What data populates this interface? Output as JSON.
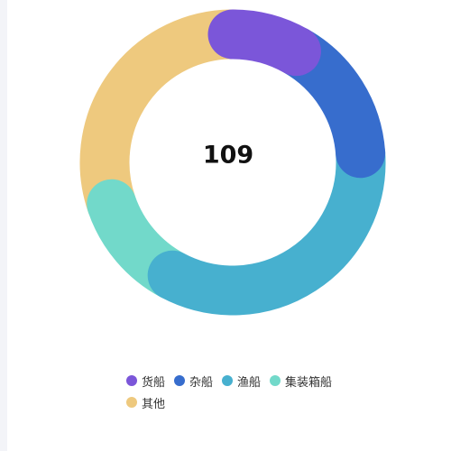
{
  "chart_data": {
    "type": "pie",
    "variant": "donut-rounded",
    "center_value": "109",
    "total": 109,
    "categories": [
      "货船",
      "杂船",
      "渔船",
      "集装箱船",
      "其他"
    ],
    "values": [
      9,
      17,
      37,
      13,
      33
    ],
    "colors": [
      "#7b56d9",
      "#376dcd",
      "#47b0cf",
      "#72d9ca",
      "#eec97e"
    ],
    "legend_position": "bottom-center",
    "start_angle_deg": 0,
    "direction": "clockwise"
  }
}
